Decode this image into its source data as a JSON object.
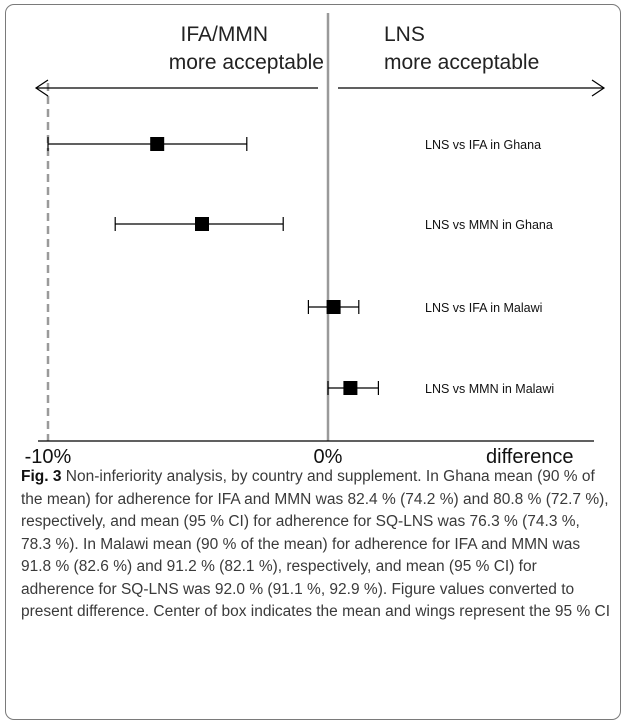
{
  "chart_data": {
    "type": "scatter",
    "subtype": "forest-plot",
    "header_left": [
      "IFA/MMN",
      "more acceptable"
    ],
    "header_right": [
      "LNS",
      "more acceptable"
    ],
    "xlabel": "difference",
    "xlim": [
      -11.5,
      10.5
    ],
    "x_ticks": [
      {
        "value": -10,
        "label": "-10%"
      },
      {
        "value": 0,
        "label": "0%"
      }
    ],
    "reference_lines": [
      {
        "value": 0,
        "style": "solid",
        "color": "#9a9a9a"
      },
      {
        "value": -10,
        "style": "dashed",
        "color": "#9a9a9a"
      }
    ],
    "rows": [
      {
        "label": "LNS vs IFA in Ghana",
        "mean": -6.1,
        "low": -10.0,
        "high": -2.9
      },
      {
        "label": "LNS vs MMN in Ghana",
        "mean": -4.5,
        "low": -7.6,
        "high": -1.6
      },
      {
        "label": "LNS vs IFA in Malawi",
        "mean": 0.2,
        "low": -0.7,
        "high": 1.1
      },
      {
        "label": "LNS vs MMN in Malawi",
        "mean": 0.8,
        "low": 0.0,
        "high": 1.8
      }
    ],
    "colors": {
      "marker": "#000000",
      "whisker": "#000000",
      "arrow": "#000000"
    }
  },
  "caption": {
    "label": "Fig. 3",
    "text": " Non-inferiority analysis, by country and supplement. In Ghana mean (90 % of the mean) for adherence for IFA and MMN was 82.4 % (74.2 %) and 80.8 % (72.7 %), respectively, and mean (95 % CI) for adherence for SQ-LNS was 76.3 % (74.3 %, 78.3 %). In Malawi mean (90 % of the mean) for adherence for IFA and MMN was 91.8 % (82.6 %) and 91.2 % (82.1 %), respectively, and mean (95 % CI) for adherence for SQ-LNS was 92.0 % (91.1 %, 92.9 %). Figure values converted to present difference. Center of box indicates the mean and wings represent the 95 % CI"
  }
}
